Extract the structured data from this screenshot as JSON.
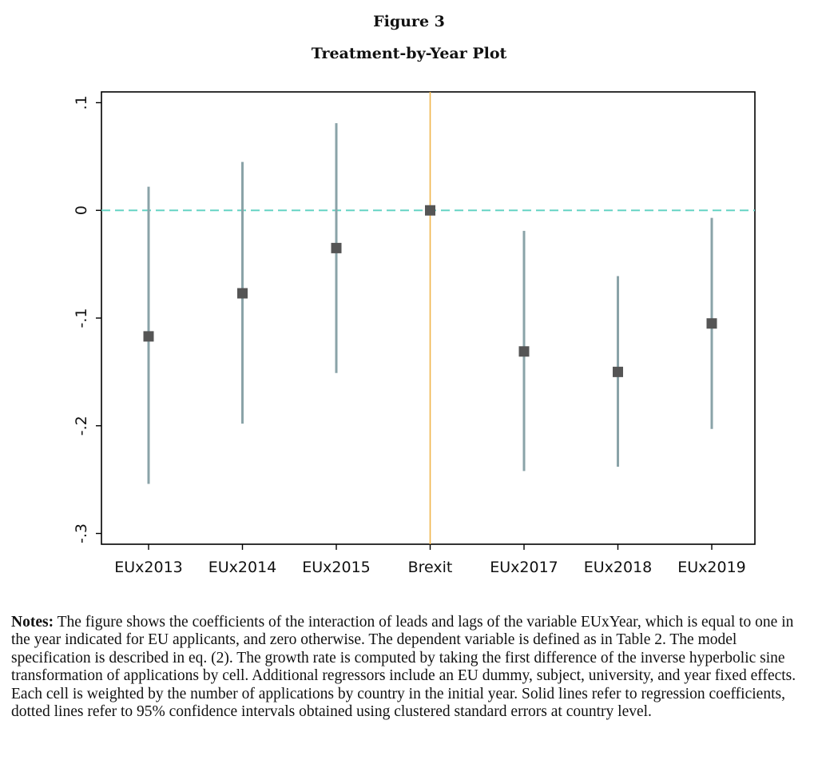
{
  "figure": {
    "number": "Figure 3",
    "title": "Treatment-by-Year Plot"
  },
  "chart_data": {
    "type": "scatter",
    "subtype": "coefficient-plot-with-confidence-intervals",
    "categories": [
      "EUx2013",
      "EUx2014",
      "EUx2015",
      "Brexit",
      "EUx2017",
      "EUx2018",
      "EUx2019"
    ],
    "series": [
      {
        "values": [
          -0.117,
          -0.077,
          -0.035,
          0.0,
          -0.131,
          -0.15,
          -0.105
        ],
        "ci_lower": [
          -0.254,
          -0.198,
          -0.151,
          0.0,
          -0.242,
          -0.238,
          -0.203
        ],
        "ci_upper": [
          0.022,
          0.045,
          0.081,
          0.0,
          -0.019,
          -0.061,
          -0.007
        ]
      }
    ],
    "ylim": [
      -0.31,
      0.11
    ],
    "yticks": [
      0.1,
      0,
      -0.1,
      -0.2,
      -0.3
    ],
    "ytick_labels": [
      ".1",
      "0",
      "-.1",
      "-.2",
      "-.3"
    ],
    "reference_line": {
      "y": 0,
      "style": "dashed",
      "color": "#66d4c4"
    },
    "event_line": {
      "category": "Brexit",
      "color": "#f0b44a"
    },
    "marker_color": "#555555",
    "ci_color": "#8aa3a8",
    "grid": false,
    "legend": "none"
  },
  "notes": {
    "label": "Notes:",
    "text": "The figure shows the coefficients of the interaction of leads and lags of the variable EUxYear, which is equal to one in the year indicated for EU applicants, and zero otherwise. The dependent variable is defined as in Table 2. The model specification is described in eq. (2). The growth rate is computed by taking the first difference of the inverse hyperbolic sine transformation of applications by cell. Additional regressors include an EU dummy, subject, university, and year fixed effects. Each cell is weighted by the number of applications by country in the initial year. Solid lines refer to regression coefficients, dotted lines refer to 95% confidence intervals obtained using clustered standard errors at country level."
  }
}
